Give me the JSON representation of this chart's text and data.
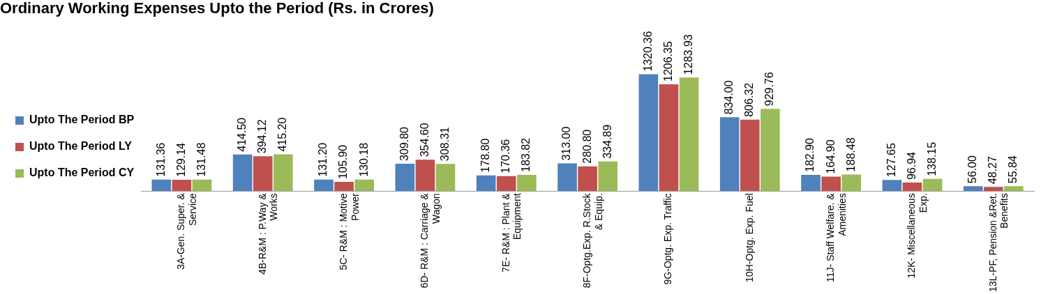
{
  "chart_data": {
    "type": "bar",
    "title": "Ordinary Working Expenses Upto the Period (Rs. in Crores)",
    "categories": [
      "3A-Gen. Super. & Service",
      "4B-R&M : P.Way & Works",
      "5C- R&M : Motive Power",
      "6D- R&M : Carriage & Wagon",
      "7E- R&M : Plant & Equipment",
      "8F-Optg.Exp. R.Stock & Equip.",
      "9G-Optg. Exp. Traffic",
      "10H-Optg. Exp. Fuel",
      "11J- Staff Welfare. & Amenities",
      "12K- Miscellaneous Exp.",
      "13L-PF, Pension &Ret. Benefits"
    ],
    "series": [
      {
        "name": "Upto The Period BP",
        "color": "#4f81bd",
        "values": [
          131.36,
          414.5,
          131.2,
          309.8,
          178.8,
          313.0,
          1320.36,
          834.0,
          182.9,
          127.65,
          56.0
        ],
        "value_labels": [
          "131.36",
          "414.50",
          "131.20",
          "309.80",
          "178.80",
          "313.00",
          "1320.36",
          "834.00",
          "182.90",
          "127.65",
          "56.00"
        ]
      },
      {
        "name": "Upto The Period LY",
        "color": "#c0504d",
        "values": [
          129.14,
          394.12,
          105.9,
          354.6,
          170.36,
          280.8,
          1206.35,
          806.32,
          164.9,
          96.94,
          48.27
        ],
        "value_labels": [
          "129.14",
          "394.12",
          "105.90",
          "354.60",
          "170.36",
          "280.80",
          "1206.35",
          "806.32",
          "164.90",
          "96.94",
          "48.27"
        ]
      },
      {
        "name": "Upto The Period CY",
        "color": "#9bbb59",
        "values": [
          131.48,
          415.2,
          130.18,
          308.31,
          183.82,
          334.89,
          1283.93,
          929.76,
          188.48,
          138.15,
          55.84
        ],
        "value_labels": [
          "131.48",
          "415.20",
          "130.18",
          "308.31",
          "183.82",
          "334.89",
          "1283.93",
          "929.76",
          "188.48",
          "138.15",
          "55.84"
        ]
      }
    ],
    "legend": "left"
  }
}
